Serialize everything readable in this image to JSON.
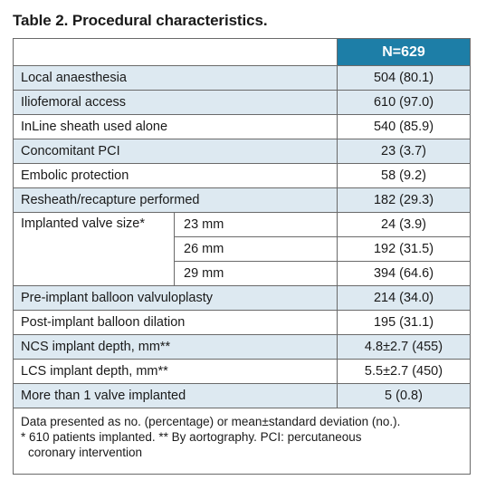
{
  "title": "Table 2. Procedural characteristics.",
  "header": {
    "value_col": "N=629"
  },
  "rows": [
    {
      "label": "Local anaesthesia",
      "value": "504 (80.1)"
    },
    {
      "label": "Iliofemoral access",
      "value": "610 (97.0)"
    },
    {
      "label": "InLine sheath used alone",
      "value": "540 (85.9)"
    },
    {
      "label": "Concomitant PCI",
      "value": "23 (3.7)"
    },
    {
      "label": "Embolic protection",
      "value": "58 (9.2)"
    },
    {
      "label": "Resheath/recapture performed",
      "value": "182 (29.3)"
    }
  ],
  "valve_size": {
    "label": "Implanted valve size*",
    "items": [
      {
        "size": "23 mm",
        "value": "24 (3.9)"
      },
      {
        "size": "26 mm",
        "value": "192 (31.5)"
      },
      {
        "size": "29 mm",
        "value": "394 (64.6)"
      }
    ]
  },
  "rows2": [
    {
      "label": "Pre-implant balloon valvuloplasty",
      "value": "214 (34.0)"
    },
    {
      "label": "Post-implant balloon dilation",
      "value": "195 (31.1)"
    },
    {
      "label": "NCS implant depth, mm**",
      "value": "4.8±2.7 (455)"
    },
    {
      "label": "LCS implant depth, mm**",
      "value": "5.5±2.7 (450)"
    },
    {
      "label": "More than 1 valve implanted",
      "value": "5 (0.8)"
    }
  ],
  "footnote": {
    "line1": "Data presented as no. (percentage) or mean±standard deviation (no.).",
    "line2": "* 610 patients implanted. ** By aortography. PCI: percutaneous",
    "line3": "coronary intervention"
  }
}
